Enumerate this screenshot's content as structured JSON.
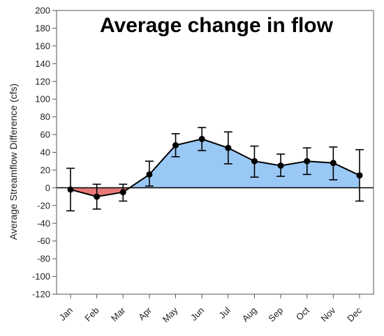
{
  "chart_data": {
    "type": "area",
    "title": "Average change in flow",
    "xlabel": "",
    "ylabel": "Average Streamflow Difference (cfs)",
    "categories": [
      "Jan",
      "Feb",
      "Mar",
      "Apr",
      "May",
      "Jun",
      "Jul",
      "Aug",
      "Sep",
      "Oct",
      "Nov",
      "Dec"
    ],
    "series": [
      {
        "values": [
          -2,
          -10,
          -5,
          15,
          48,
          55,
          45,
          30,
          25,
          30,
          28,
          14
        ],
        "error_low": [
          -26,
          -24,
          -15,
          2,
          35,
          42,
          27,
          12,
          13,
          15,
          9,
          -15
        ],
        "error_high": [
          22,
          4,
          4,
          30,
          61,
          68,
          63,
          47,
          38,
          45,
          46,
          43
        ]
      }
    ],
    "ylim": [
      -120,
      200
    ],
    "yticks": [
      -120,
      -100,
      -80,
      -60,
      -40,
      -20,
      0,
      20,
      40,
      60,
      80,
      100,
      120,
      140,
      160,
      180,
      200
    ],
    "grid": false,
    "legend": "none",
    "colors": {
      "positive_fill": "#99c8f5",
      "negative_fill": "#e8797a",
      "line": "#000000",
      "axis": "#555555"
    }
  }
}
